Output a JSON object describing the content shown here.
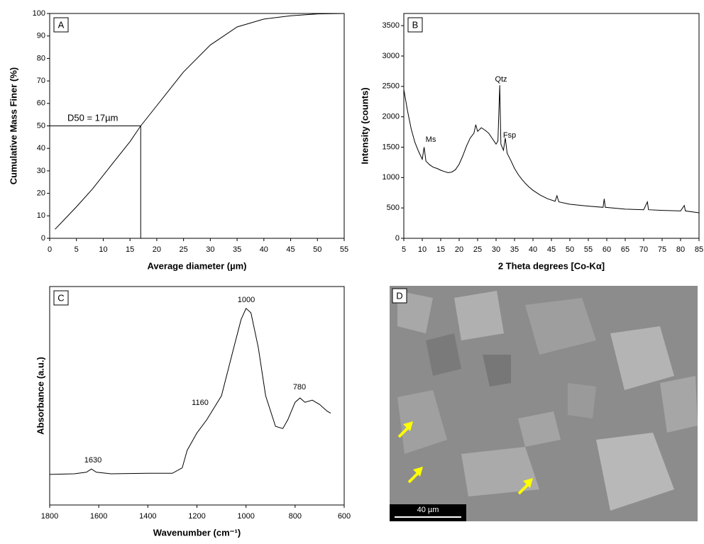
{
  "chart_data": [
    {
      "type": "line",
      "panel_label": "A",
      "x_label": "Average diameter (µm)",
      "y_label": "Cumulative Mass Finer (%)",
      "x": [
        1,
        3,
        5,
        8,
        10,
        12,
        15,
        17,
        20,
        25,
        30,
        35,
        40,
        45,
        50,
        55
      ],
      "values": [
        4,
        9,
        14,
        22,
        28,
        34,
        43,
        50,
        59,
        74,
        86,
        94,
        97.5,
        99,
        99.8,
        100
      ],
      "color": "#000000",
      "xlim": [
        0,
        55
      ],
      "xticks": [
        0,
        5,
        10,
        15,
        20,
        25,
        30,
        35,
        40,
        45,
        50,
        55
      ],
      "ylim": [
        0,
        100
      ],
      "yticks": [
        0,
        10,
        20,
        30,
        40,
        50,
        60,
        70,
        80,
        90,
        100
      ],
      "reference": {
        "x": 17,
        "y": 50
      },
      "annotations": [
        "D50 = 17µm"
      ]
    },
    {
      "type": "line",
      "panel_label": "B",
      "x_label": "2 Theta degrees [Co-Kα]",
      "y_label": "Intensity (counts)",
      "x": [
        5,
        6,
        7,
        8,
        9,
        10,
        10.5,
        11,
        12,
        13,
        14,
        15,
        16,
        17,
        18,
        19,
        20,
        21,
        22,
        23,
        24,
        24.5,
        25,
        26,
        27,
        28,
        29,
        30,
        30.5,
        31,
        31.3,
        32,
        32.5,
        33,
        34,
        35,
        36,
        37,
        38,
        39,
        40,
        42,
        44,
        46,
        46.5,
        47,
        50,
        55,
        59,
        59.3,
        59.6,
        65,
        70,
        71,
        71.3,
        75,
        80,
        81,
        81.3,
        85
      ],
      "values": [
        2450,
        2100,
        1800,
        1580,
        1430,
        1300,
        1500,
        1270,
        1210,
        1170,
        1150,
        1120,
        1100,
        1080,
        1090,
        1130,
        1220,
        1360,
        1520,
        1650,
        1730,
        1870,
        1760,
        1820,
        1780,
        1730,
        1640,
        1550,
        1600,
        2520,
        1550,
        1450,
        1650,
        1400,
        1280,
        1150,
        1050,
        970,
        900,
        840,
        790,
        710,
        650,
        610,
        700,
        600,
        560,
        530,
        510,
        650,
        510,
        480,
        470,
        600,
        470,
        460,
        450,
        540,
        450,
        420
      ],
      "color": "#000000",
      "xlim": [
        5,
        85
      ],
      "xticks": [
        5,
        10,
        15,
        20,
        25,
        30,
        35,
        40,
        45,
        50,
        55,
        60,
        65,
        70,
        75,
        80,
        85
      ],
      "ylim": [
        0,
        3700
      ],
      "yticks": [
        0,
        500,
        1000,
        1500,
        2000,
        2500,
        3000,
        3500
      ],
      "annotations": [
        "Ms",
        "Qtz",
        "Fsp"
      ]
    },
    {
      "type": "line",
      "panel_label": "C",
      "x_label": "Wavenumber (cm⁻¹)",
      "y_label": "Absorbance (a.u.)",
      "x": [
        1800,
        1700,
        1650,
        1630,
        1610,
        1550,
        1400,
        1300,
        1260,
        1240,
        1200,
        1160,
        1100,
        1050,
        1020,
        1000,
        980,
        950,
        920,
        880,
        850,
        830,
        800,
        780,
        760,
        730,
        700,
        670,
        655
      ],
      "values": [
        0.14,
        0.143,
        0.15,
        0.165,
        0.15,
        0.143,
        0.145,
        0.145,
        0.17,
        0.25,
        0.33,
        0.39,
        0.5,
        0.72,
        0.85,
        0.9,
        0.88,
        0.72,
        0.5,
        0.36,
        0.35,
        0.39,
        0.47,
        0.49,
        0.47,
        0.48,
        0.46,
        0.43,
        0.42
      ],
      "color": "#000000",
      "xlim": [
        1800,
        600
      ],
      "xticks": [
        1800,
        1600,
        1400,
        1200,
        1000,
        800,
        600
      ],
      "ylim": [
        0,
        1
      ],
      "annotations": [
        "1630",
        "1160",
        "1000",
        "780"
      ]
    }
  ],
  "image": {
    "panel_label": "D",
    "scale_bar": "40 µm"
  }
}
